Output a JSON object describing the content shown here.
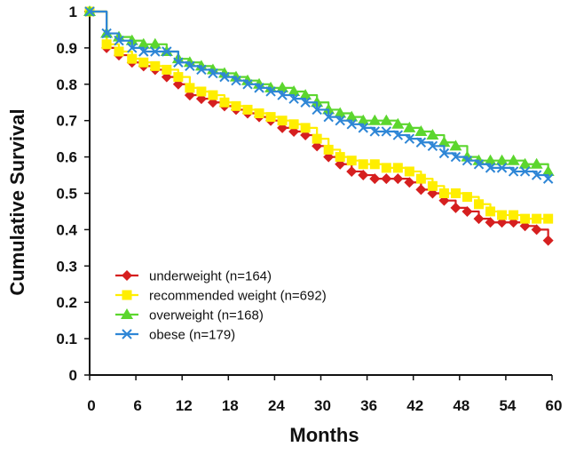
{
  "chart_data": {
    "type": "line",
    "xlabel": "Months",
    "ylabel": "Cumulative Survival",
    "xlim": [
      0,
      60
    ],
    "ylim": [
      0,
      1
    ],
    "x_ticks": [
      0,
      6,
      12,
      18,
      24,
      30,
      36,
      42,
      48,
      54,
      60
    ],
    "y_ticks": [
      0,
      0.1,
      0.2,
      0.3,
      0.4,
      0.5,
      0.6,
      0.7,
      0.8,
      0.9,
      1
    ],
    "y_tick_labels": [
      "0",
      "0.1",
      "0.2",
      "0.3",
      "0.4",
      "0.5",
      "0.6",
      "0.7",
      "0.8",
      "0.9",
      "1"
    ],
    "grid": false,
    "legend_position": "bottom-left",
    "series": [
      {
        "name": "underweight (n=164)",
        "color": "#d61f1f",
        "marker": "diamond",
        "x": [
          0,
          2.2,
          3.8,
          5.5,
          7,
          8.5,
          10,
          11.5,
          13,
          14.5,
          16,
          17.5,
          19,
          20.5,
          22,
          23.5,
          25,
          26.5,
          28,
          29.5,
          31,
          32.5,
          34,
          35.5,
          37,
          38.5,
          40,
          41.5,
          43,
          44.5,
          46,
          47.5,
          49,
          50.5,
          52,
          53.5,
          55,
          56.5,
          58,
          59.5
        ],
        "y": [
          1.0,
          0.9,
          0.88,
          0.86,
          0.85,
          0.84,
          0.82,
          0.8,
          0.77,
          0.76,
          0.75,
          0.74,
          0.73,
          0.72,
          0.71,
          0.7,
          0.68,
          0.67,
          0.66,
          0.63,
          0.6,
          0.58,
          0.56,
          0.55,
          0.54,
          0.54,
          0.54,
          0.53,
          0.51,
          0.5,
          0.48,
          0.46,
          0.45,
          0.43,
          0.42,
          0.42,
          0.42,
          0.41,
          0.4,
          0.37
        ]
      },
      {
        "name": "recommended weight (n=692)",
        "color": "#ffee00",
        "marker": "square",
        "x": [
          0,
          2.2,
          3.8,
          5.5,
          7,
          8.5,
          10,
          11.5,
          13,
          14.5,
          16,
          17.5,
          19,
          20.5,
          22,
          23.5,
          25,
          26.5,
          28,
          29.5,
          31,
          32.5,
          34,
          35.5,
          37,
          38.5,
          40,
          41.5,
          43,
          44.5,
          46,
          47.5,
          49,
          50.5,
          52,
          53.5,
          55,
          56.5,
          58,
          59.5
        ],
        "y": [
          1.0,
          0.91,
          0.89,
          0.87,
          0.86,
          0.85,
          0.84,
          0.82,
          0.79,
          0.78,
          0.77,
          0.75,
          0.74,
          0.73,
          0.72,
          0.71,
          0.7,
          0.69,
          0.68,
          0.65,
          0.62,
          0.6,
          0.59,
          0.58,
          0.58,
          0.57,
          0.57,
          0.56,
          0.54,
          0.52,
          0.5,
          0.5,
          0.49,
          0.47,
          0.45,
          0.44,
          0.44,
          0.43,
          0.43,
          0.43
        ]
      },
      {
        "name": "overweight (n=168)",
        "color": "#5cd62e",
        "marker": "triangle",
        "x": [
          0,
          2.2,
          3.8,
          5.5,
          7,
          8.5,
          10,
          11.5,
          13,
          14.5,
          16,
          17.5,
          19,
          20.5,
          22,
          23.5,
          25,
          26.5,
          28,
          29.5,
          31,
          32.5,
          34,
          35.5,
          37,
          38.5,
          40,
          41.5,
          43,
          44.5,
          46,
          47.5,
          49,
          50.5,
          52,
          53.5,
          55,
          56.5,
          58,
          59.5
        ],
        "y": [
          1.0,
          0.94,
          0.93,
          0.92,
          0.91,
          0.91,
          0.89,
          0.87,
          0.86,
          0.85,
          0.84,
          0.83,
          0.82,
          0.81,
          0.8,
          0.79,
          0.79,
          0.78,
          0.77,
          0.75,
          0.73,
          0.72,
          0.71,
          0.7,
          0.7,
          0.7,
          0.69,
          0.68,
          0.67,
          0.66,
          0.64,
          0.63,
          0.6,
          0.59,
          0.59,
          0.59,
          0.59,
          0.58,
          0.58,
          0.56
        ]
      },
      {
        "name": "obese (n=179)",
        "color": "#2e86d6",
        "marker": "x",
        "x": [
          0,
          2.2,
          3.8,
          5.5,
          7,
          8.5,
          10,
          11.5,
          13,
          14.5,
          16,
          17.5,
          19,
          20.5,
          22,
          23.5,
          25,
          26.5,
          28,
          29.5,
          31,
          32.5,
          34,
          35.5,
          37,
          38.5,
          40,
          41.5,
          43,
          44.5,
          46,
          47.5,
          49,
          50.5,
          52,
          53.5,
          55,
          56.5,
          58,
          59.5
        ],
        "y": [
          1.0,
          0.94,
          0.92,
          0.9,
          0.89,
          0.89,
          0.89,
          0.86,
          0.85,
          0.84,
          0.83,
          0.82,
          0.81,
          0.8,
          0.79,
          0.78,
          0.77,
          0.76,
          0.75,
          0.73,
          0.71,
          0.7,
          0.69,
          0.68,
          0.67,
          0.67,
          0.66,
          0.65,
          0.64,
          0.63,
          0.61,
          0.6,
          0.59,
          0.58,
          0.57,
          0.57,
          0.56,
          0.56,
          0.55,
          0.54
        ]
      }
    ]
  }
}
